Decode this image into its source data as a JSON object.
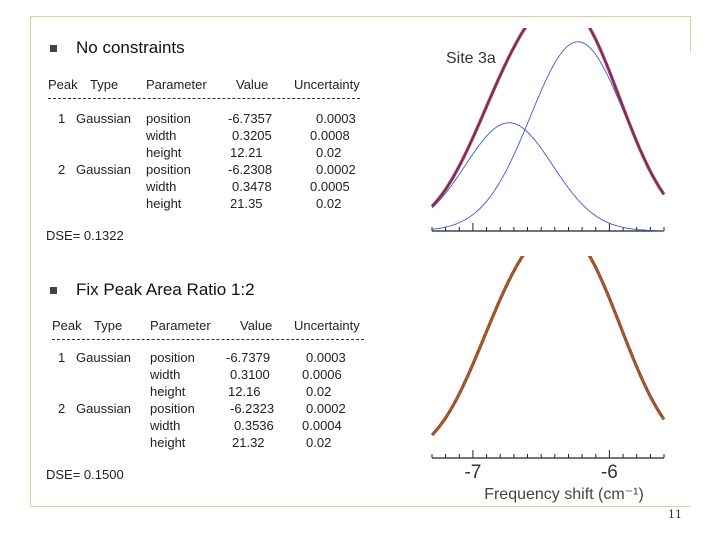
{
  "section1": {
    "heading": "No constraints",
    "columns": [
      "Peak",
      "Type",
      "Parameter",
      "Value",
      "Uncertainty"
    ],
    "rows": [
      {
        "peak": "1",
        "type": "Gaussian",
        "parameter": "position",
        "value": "-6.7357",
        "uncertainty": "0.0003"
      },
      {
        "peak": "",
        "type": "",
        "parameter": "width",
        "value": "0.3205",
        "uncertainty": "0.0008"
      },
      {
        "peak": "",
        "type": "",
        "parameter": "height",
        "value": "12.21",
        "uncertainty": "0.02"
      },
      {
        "peak": "2",
        "type": "Gaussian",
        "parameter": "position",
        "value": "-6.2308",
        "uncertainty": "0.0002"
      },
      {
        "peak": "",
        "type": "",
        "parameter": "width",
        "value": "0.3478",
        "uncertainty": "0.0005"
      },
      {
        "peak": "",
        "type": "",
        "parameter": "height",
        "value": "21.35",
        "uncertainty": "0.02"
      }
    ],
    "dse": "DSE= 0.1322"
  },
  "section2": {
    "heading": "Fix Peak Area Ratio 1:2",
    "columns": [
      "Peak",
      "Type",
      "Parameter",
      "Value",
      "Uncertainty"
    ],
    "rows": [
      {
        "peak": "1",
        "type": "Gaussian",
        "parameter": "position",
        "value": "-6.7379",
        "uncertainty": "0.0003"
      },
      {
        "peak": "",
        "type": "",
        "parameter": "width",
        "value": "0.3100",
        "uncertainty": "0.0006"
      },
      {
        "peak": "",
        "type": "",
        "parameter": "height",
        "value": "12.16",
        "uncertainty": "0.02"
      },
      {
        "peak": "2",
        "type": "Gaussian",
        "parameter": "position",
        "value": "-6.2323",
        "uncertainty": "0.0002"
      },
      {
        "peak": "",
        "type": "",
        "parameter": "width",
        "value": "0.3536",
        "uncertainty": "0.0004"
      },
      {
        "peak": "",
        "type": "",
        "parameter": "height",
        "value": "21.32",
        "uncertainty": "0.02"
      }
    ],
    "dse": "DSE= 0.1500"
  },
  "page_number": "11",
  "chart_data": [
    {
      "type": "line",
      "title": "Site 3a",
      "xlabel": "",
      "x_range": [
        -7.3,
        -5.6
      ],
      "x_axis_reversed": true,
      "grid": false,
      "peaks": [
        {
          "position": -6.7357,
          "width": 0.3205,
          "height": 12.21
        },
        {
          "position": -6.2308,
          "width": 0.3478,
          "height": 21.35
        }
      ],
      "series": [
        {
          "role": "data",
          "color": "#c0392b"
        },
        {
          "role": "fit",
          "color": "#3b2fb0"
        },
        {
          "role": "component",
          "color": "#3b5bd0"
        }
      ]
    },
    {
      "type": "line",
      "title": "",
      "xlabel": "Frequency shift (cm⁻¹)",
      "x_range": [
        -7.3,
        -5.6
      ],
      "x_axis_reversed": true,
      "x_ticks": [
        "-7",
        "-6"
      ],
      "x_tick_values": [
        -7,
        -6
      ],
      "grid": false,
      "peaks": [
        {
          "position": -6.7379,
          "width": 0.31,
          "height": 12.16
        },
        {
          "position": -6.2323,
          "width": 0.3536,
          "height": 21.32
        }
      ],
      "series": [
        {
          "role": "data",
          "color": "#c0392b"
        },
        {
          "role": "fit",
          "color": "#2ea43a"
        }
      ]
    }
  ]
}
